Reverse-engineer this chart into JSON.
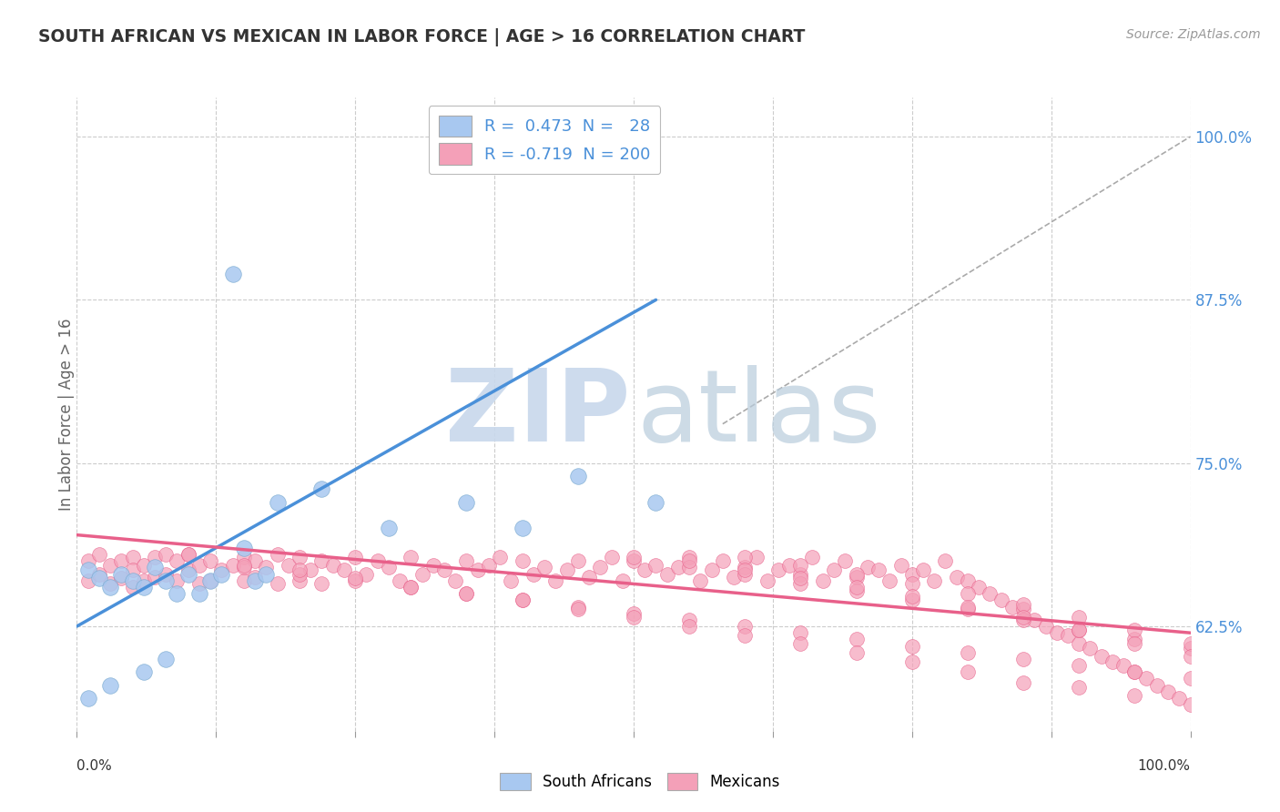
{
  "title": "SOUTH AFRICAN VS MEXICAN IN LABOR FORCE | AGE > 16 CORRELATION CHART",
  "source": "Source: ZipAtlas.com",
  "ylabel": "In Labor Force | Age > 16",
  "right_yticks": [
    0.625,
    0.75,
    0.875,
    1.0
  ],
  "right_yticklabels": [
    "62.5%",
    "75.0%",
    "87.5%",
    "100.0%"
  ],
  "blue_color": "#A8C8F0",
  "pink_color": "#F4A0B8",
  "blue_line_color": "#4A90D9",
  "pink_line_color": "#E8608A",
  "watermark_zip_color": "#C8D8EC",
  "watermark_atlas_color": "#B8CCDC",
  "background_color": "#FFFFFF",
  "grid_color": "#CCCCCC",
  "xlim": [
    0.0,
    1.0
  ],
  "ylim": [
    0.545,
    1.03
  ],
  "blue_line_x": [
    0.0,
    0.52
  ],
  "blue_line_y": [
    0.625,
    0.875
  ],
  "pink_line_x": [
    0.0,
    1.0
  ],
  "pink_line_y": [
    0.695,
    0.62
  ],
  "diag_line_x": [
    0.58,
    1.0
  ],
  "diag_line_y": [
    0.78,
    1.0
  ],
  "blue_scatter_x": [
    0.01,
    0.02,
    0.03,
    0.04,
    0.05,
    0.06,
    0.07,
    0.08,
    0.09,
    0.1,
    0.11,
    0.12,
    0.13,
    0.14,
    0.15,
    0.16,
    0.17,
    0.18,
    0.22,
    0.28,
    0.35,
    0.4,
    0.45,
    0.52,
    0.01,
    0.03,
    0.06,
    0.08
  ],
  "blue_scatter_y": [
    0.668,
    0.662,
    0.655,
    0.665,
    0.66,
    0.655,
    0.67,
    0.66,
    0.65,
    0.665,
    0.65,
    0.66,
    0.665,
    0.895,
    0.685,
    0.66,
    0.665,
    0.72,
    0.73,
    0.7,
    0.72,
    0.7,
    0.74,
    0.72,
    0.57,
    0.58,
    0.59,
    0.6
  ],
  "pink_scatter_x": [
    0.01,
    0.01,
    0.02,
    0.02,
    0.03,
    0.03,
    0.04,
    0.04,
    0.05,
    0.05,
    0.05,
    0.06,
    0.06,
    0.07,
    0.07,
    0.08,
    0.08,
    0.09,
    0.09,
    0.1,
    0.1,
    0.11,
    0.11,
    0.12,
    0.12,
    0.13,
    0.14,
    0.15,
    0.15,
    0.16,
    0.16,
    0.17,
    0.18,
    0.18,
    0.19,
    0.2,
    0.2,
    0.21,
    0.22,
    0.22,
    0.23,
    0.24,
    0.25,
    0.26,
    0.27,
    0.28,
    0.29,
    0.3,
    0.31,
    0.32,
    0.33,
    0.34,
    0.35,
    0.36,
    0.37,
    0.38,
    0.39,
    0.4,
    0.41,
    0.42,
    0.43,
    0.44,
    0.45,
    0.46,
    0.47,
    0.48,
    0.49,
    0.5,
    0.51,
    0.52,
    0.53,
    0.54,
    0.55,
    0.56,
    0.57,
    0.58,
    0.59,
    0.6,
    0.61,
    0.62,
    0.63,
    0.64,
    0.65,
    0.66,
    0.67,
    0.68,
    0.69,
    0.7,
    0.71,
    0.72,
    0.73,
    0.74,
    0.75,
    0.76,
    0.77,
    0.78,
    0.79,
    0.8,
    0.81,
    0.82,
    0.83,
    0.84,
    0.85,
    0.86,
    0.87,
    0.88,
    0.89,
    0.9,
    0.91,
    0.92,
    0.93,
    0.94,
    0.95,
    0.96,
    0.97,
    0.98,
    0.99,
    1.0,
    0.5,
    0.55,
    0.6,
    0.65,
    0.7,
    0.75,
    0.8,
    0.85,
    0.9,
    0.95,
    1.0,
    0.15,
    0.2,
    0.25,
    0.3,
    0.35,
    0.4,
    0.45,
    0.5,
    0.55,
    0.6,
    0.65,
    0.7,
    0.75,
    0.8,
    0.85,
    0.9,
    0.95,
    1.0,
    0.1,
    0.15,
    0.2,
    0.25,
    0.3,
    0.35,
    0.4,
    0.45,
    0.5,
    0.55,
    0.6,
    0.65,
    0.7,
    0.75,
    0.8,
    0.85,
    0.9,
    0.95,
    0.6,
    0.65,
    0.7,
    0.75,
    0.8,
    0.85,
    0.9,
    0.95,
    1.0,
    0.55,
    0.6,
    0.65,
    0.7,
    0.75,
    0.8,
    0.85,
    0.9,
    0.95,
    1.0
  ],
  "pink_scatter_y": [
    0.675,
    0.66,
    0.68,
    0.665,
    0.672,
    0.658,
    0.675,
    0.662,
    0.678,
    0.668,
    0.655,
    0.672,
    0.66,
    0.678,
    0.663,
    0.68,
    0.665,
    0.675,
    0.66,
    0.68,
    0.668,
    0.672,
    0.658,
    0.675,
    0.66,
    0.668,
    0.672,
    0.678,
    0.66,
    0.675,
    0.663,
    0.67,
    0.68,
    0.658,
    0.672,
    0.678,
    0.66,
    0.668,
    0.675,
    0.658,
    0.672,
    0.668,
    0.678,
    0.665,
    0.675,
    0.67,
    0.66,
    0.678,
    0.665,
    0.672,
    0.668,
    0.66,
    0.675,
    0.668,
    0.672,
    0.678,
    0.66,
    0.675,
    0.665,
    0.67,
    0.66,
    0.668,
    0.675,
    0.663,
    0.67,
    0.678,
    0.66,
    0.675,
    0.668,
    0.672,
    0.665,
    0.67,
    0.678,
    0.66,
    0.668,
    0.675,
    0.663,
    0.67,
    0.678,
    0.66,
    0.668,
    0.672,
    0.665,
    0.678,
    0.66,
    0.668,
    0.675,
    0.663,
    0.67,
    0.668,
    0.66,
    0.672,
    0.665,
    0.668,
    0.66,
    0.675,
    0.663,
    0.66,
    0.655,
    0.65,
    0.645,
    0.64,
    0.638,
    0.63,
    0.625,
    0.62,
    0.618,
    0.612,
    0.608,
    0.602,
    0.598,
    0.595,
    0.59,
    0.585,
    0.58,
    0.575,
    0.57,
    0.565,
    0.678,
    0.67,
    0.665,
    0.658,
    0.652,
    0.645,
    0.638,
    0.63,
    0.622,
    0.615,
    0.608,
    0.67,
    0.665,
    0.66,
    0.655,
    0.65,
    0.645,
    0.64,
    0.635,
    0.63,
    0.625,
    0.62,
    0.615,
    0.61,
    0.605,
    0.6,
    0.595,
    0.59,
    0.585,
    0.68,
    0.672,
    0.668,
    0.662,
    0.655,
    0.65,
    0.645,
    0.638,
    0.632,
    0.625,
    0.618,
    0.612,
    0.605,
    0.598,
    0.59,
    0.582,
    0.578,
    0.572,
    0.678,
    0.672,
    0.665,
    0.658,
    0.65,
    0.642,
    0.632,
    0.622,
    0.612,
    0.675,
    0.668,
    0.662,
    0.655,
    0.648,
    0.64,
    0.632,
    0.622,
    0.612,
    0.602
  ]
}
